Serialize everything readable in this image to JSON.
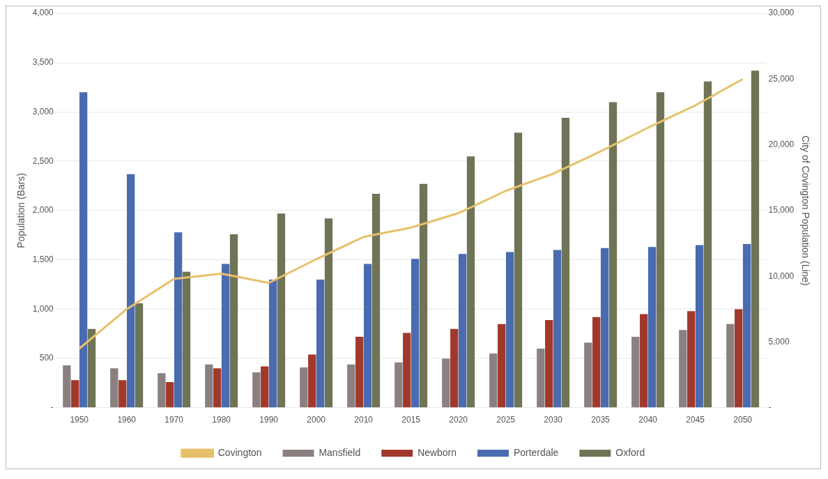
{
  "chart_data": {
    "type": "bar",
    "xlabel": null,
    "ylabel": "Population (Bars)",
    "y2label": "City of Covington Population (Line)",
    "categories": [
      "1950",
      "1960",
      "1970",
      "1980",
      "1990",
      "2000",
      "2010",
      "2015",
      "2020",
      "2025",
      "2030",
      "2035",
      "2040",
      "2045",
      "2050"
    ],
    "series": [
      {
        "name": "Mansfield",
        "color": "#8c7f80",
        "values": [
          430,
          400,
          350,
          440,
          360,
          410,
          440,
          460,
          500,
          550,
          600,
          660,
          720,
          790,
          850
        ]
      },
      {
        "name": "Newborn",
        "color": "#a0392b",
        "values": [
          280,
          280,
          260,
          400,
          420,
          540,
          720,
          760,
          800,
          850,
          890,
          920,
          950,
          980,
          1000
        ]
      },
      {
        "name": "Porterdale",
        "color": "#4a6bb0",
        "values": [
          3200,
          2370,
          1780,
          1460,
          1300,
          1300,
          1460,
          1510,
          1560,
          1580,
          1600,
          1620,
          1630,
          1650,
          1660
        ]
      },
      {
        "name": "Oxford",
        "color": "#6f7456",
        "values": [
          800,
          1060,
          1380,
          1760,
          1970,
          1920,
          2170,
          2270,
          2550,
          2790,
          2940,
          3100,
          3200,
          3310,
          3420
        ]
      },
      {
        "name": "Covington",
        "type": "line",
        "axis": "y2",
        "color": "#e8c06a",
        "marker": "none",
        "values": [
          4500,
          7500,
          9800,
          10200,
          9500,
          11300,
          13000,
          13700,
          14800,
          16500,
          17800,
          19500,
          21300,
          23000,
          25000
        ]
      }
    ],
    "ylim": [
      0,
      4000
    ],
    "yticks": [
      {
        "value": 0,
        "label": "-"
      },
      {
        "value": 500,
        "label": "500"
      },
      {
        "value": 1000,
        "label": "1,000"
      },
      {
        "value": 1500,
        "label": "1,500"
      },
      {
        "value": 2000,
        "label": "2,000"
      },
      {
        "value": 2500,
        "label": "2,500"
      },
      {
        "value": 3000,
        "label": "3,000"
      },
      {
        "value": 3500,
        "label": "3,500"
      },
      {
        "value": 4000,
        "label": "4,000"
      }
    ],
    "y2lim": [
      0,
      30000
    ],
    "y2ticks": [
      {
        "value": 0,
        "label": "-"
      },
      {
        "value": 5000,
        "label": "5,000"
      },
      {
        "value": 10000,
        "label": "10,000"
      },
      {
        "value": 15000,
        "label": "15,000"
      },
      {
        "value": 20000,
        "label": "20,000"
      },
      {
        "value": 25000,
        "label": "25,000"
      },
      {
        "value": 30000,
        "label": "30,000"
      }
    ],
    "grid": "y",
    "legend": "bottom"
  }
}
